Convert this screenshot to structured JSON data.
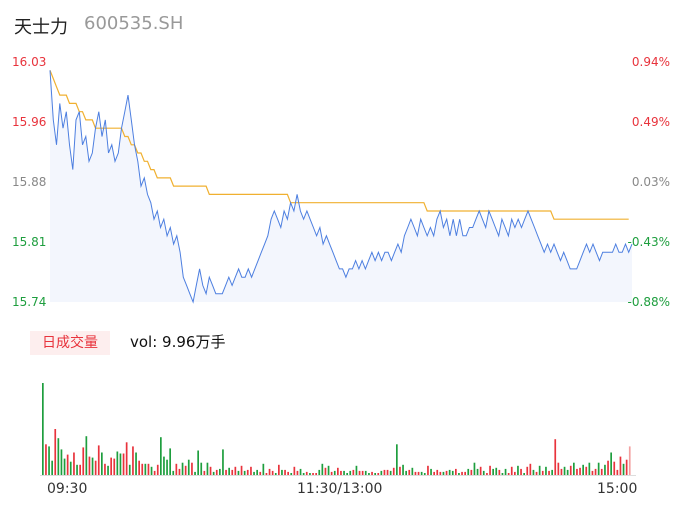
{
  "header": {
    "name": "天士力",
    "code": "600535.SH"
  },
  "price_axis": {
    "left_labels": [
      "16.03",
      "15.96",
      "15.88",
      "15.81",
      "15.74"
    ],
    "right_labels": [
      "0.94%",
      "0.49%",
      "0.03%",
      "-0.43%",
      "-0.88%"
    ]
  },
  "volume_panel": {
    "tab_label": "日成交量",
    "vol_text": "vol: 9.96万手"
  },
  "time_labels": [
    "09:30",
    "11:30/13:00",
    "15:00"
  ],
  "colors": {
    "up": "#e8333c",
    "down": "#1e9e3e",
    "neutral": "#888888",
    "price_line": "#4d7fe0",
    "avg_line": "#f0b030"
  },
  "chart_data": [
    {
      "type": "line",
      "ylim": [
        15.74,
        16.03
      ],
      "series": [
        {
          "values": [
            16.02,
            15.96,
            15.93,
            15.98,
            15.95,
            15.97,
            15.93,
            15.9,
            15.96,
            15.97,
            15.93,
            15.94,
            15.91,
            15.92,
            15.95,
            15.97,
            15.94,
            15.96,
            15.92,
            15.93,
            15.91,
            15.92,
            15.95,
            15.97,
            15.99,
            15.96,
            15.93,
            15.91,
            15.88,
            15.89,
            15.87,
            15.86,
            15.84,
            15.85,
            15.83,
            15.84,
            15.82,
            15.83,
            15.81,
            15.82,
            15.8,
            15.77,
            15.76,
            15.75,
            15.74,
            15.76,
            15.78,
            15.76,
            15.75,
            15.77,
            15.76,
            15.75,
            15.75,
            15.75,
            15.76,
            15.77,
            15.76,
            15.77,
            15.78,
            15.77,
            15.77,
            15.78,
            15.77,
            15.78,
            15.79,
            15.8,
            15.81,
            15.82,
            15.84,
            15.85,
            15.84,
            15.83,
            15.85,
            15.84,
            15.86,
            15.85,
            15.87,
            15.85,
            15.84,
            15.85,
            15.84,
            15.83,
            15.82,
            15.83,
            15.81,
            15.82,
            15.81,
            15.8,
            15.79,
            15.78,
            15.78,
            15.77,
            15.78,
            15.78,
            15.79,
            15.78,
            15.79,
            15.78,
            15.79,
            15.8,
            15.79,
            15.8,
            15.79,
            15.8,
            15.8,
            15.79,
            15.8,
            15.81,
            15.8,
            15.82,
            15.83,
            15.84,
            15.83,
            15.82,
            15.84,
            15.83,
            15.82,
            15.83,
            15.82,
            15.84,
            15.85,
            15.83,
            15.84,
            15.82,
            15.84,
            15.82,
            15.84,
            15.82,
            15.82,
            15.83,
            15.83,
            15.84,
            15.85,
            15.84,
            15.83,
            15.85,
            15.84,
            15.83,
            15.82,
            15.84,
            15.83,
            15.82,
            15.84,
            15.83,
            15.84,
            15.83,
            15.84,
            15.85,
            15.84,
            15.83,
            15.82,
            15.81,
            15.8,
            15.81,
            15.8,
            15.81,
            15.8,
            15.79,
            15.8,
            15.79,
            15.78,
            15.78,
            15.78,
            15.79,
            15.8,
            15.81,
            15.8,
            15.81,
            15.8,
            15.79,
            15.8,
            15.8,
            15.8,
            15.8,
            15.81,
            15.8,
            15.8,
            15.81,
            15.8,
            15.81
          ]
        },
        {
          "values": [
            16.02,
            16.01,
            16.0,
            15.99,
            15.99,
            15.99,
            15.98,
            15.98,
            15.98,
            15.97,
            15.97,
            15.96,
            15.96,
            15.96,
            15.95,
            15.95,
            15.95,
            15.95,
            15.95,
            15.95,
            15.95,
            15.95,
            15.95,
            15.94,
            15.94,
            15.93,
            15.93,
            15.92,
            15.92,
            15.91,
            15.91,
            15.9,
            15.9,
            15.89,
            15.89,
            15.89,
            15.89,
            15.89,
            15.88,
            15.88,
            15.88,
            15.88,
            15.88,
            15.88,
            15.88,
            15.88,
            15.88,
            15.88,
            15.88,
            15.87,
            15.87,
            15.87,
            15.87,
            15.87,
            15.87,
            15.87,
            15.87,
            15.87,
            15.87,
            15.87,
            15.87,
            15.87,
            15.87,
            15.87,
            15.87,
            15.87,
            15.87,
            15.87,
            15.87,
            15.87,
            15.87,
            15.87,
            15.87,
            15.87,
            15.86,
            15.86,
            15.86,
            15.86,
            15.86,
            15.86,
            15.86,
            15.86,
            15.86,
            15.86,
            15.86,
            15.86,
            15.86,
            15.86,
            15.86,
            15.86,
            15.86,
            15.86,
            15.86,
            15.86,
            15.86,
            15.86,
            15.86,
            15.86,
            15.86,
            15.86,
            15.86,
            15.86,
            15.86,
            15.86,
            15.86,
            15.86,
            15.86,
            15.86,
            15.86,
            15.86,
            15.86,
            15.86,
            15.86,
            15.86,
            15.86,
            15.86,
            15.85,
            15.85,
            15.85,
            15.85,
            15.85,
            15.85,
            15.85,
            15.85,
            15.85,
            15.85,
            15.85,
            15.85,
            15.85,
            15.85,
            15.85,
            15.85,
            15.85,
            15.85,
            15.85,
            15.85,
            15.85,
            15.85,
            15.85,
            15.85,
            15.85,
            15.85,
            15.85,
            15.85,
            15.85,
            15.85,
            15.85,
            15.85,
            15.85,
            15.85,
            15.85,
            15.85,
            15.85,
            15.85,
            15.85,
            15.84,
            15.84,
            15.84,
            15.84,
            15.84,
            15.84,
            15.84,
            15.84,
            15.84,
            15.84,
            15.84,
            15.84,
            15.84,
            15.84,
            15.84,
            15.84,
            15.84,
            15.84,
            15.84,
            15.84,
            15.84,
            15.84,
            15.84,
            15.84
          ]
        }
      ]
    },
    {
      "type": "bar",
      "values": [
        90,
        30,
        28,
        14,
        45,
        36,
        25,
        16,
        20,
        13,
        22,
        10,
        10,
        27,
        38,
        18,
        17,
        14,
        29,
        22,
        11,
        9,
        17,
        16,
        23,
        21,
        21,
        32,
        10,
        28,
        22,
        14,
        11,
        11,
        11,
        8,
        4,
        10,
        37,
        18,
        15,
        26,
        4,
        11,
        6,
        12,
        9,
        15,
        12,
        3,
        24,
        12,
        4,
        12,
        8,
        3,
        5,
        6,
        25,
        5,
        7,
        5,
        8,
        4,
        9,
        4,
        5,
        8,
        3,
        5,
        3,
        11,
        2,
        6,
        4,
        2,
        10,
        5,
        5,
        3,
        2,
        8,
        4,
        6,
        2,
        3,
        2,
        2,
        2,
        5,
        11,
        7,
        9,
        3,
        4,
        7,
        4,
        4,
        2,
        4,
        5,
        9,
        4,
        4,
        4,
        2,
        3,
        2,
        2,
        4,
        5,
        5,
        4,
        7,
        30,
        8,
        10,
        4,
        5,
        7,
        3,
        3,
        3,
        2,
        9,
        6,
        3,
        5,
        3,
        3,
        4,
        5,
        4,
        6,
        2,
        3,
        3,
        6,
        5,
        12,
        6,
        8,
        4,
        2,
        9,
        6,
        7,
        5,
        2,
        6,
        2,
        8,
        3,
        9,
        6,
        2,
        8,
        11,
        5,
        3,
        9,
        4,
        8,
        4,
        5,
        35,
        12,
        6,
        8,
        5,
        9,
        12,
        6,
        7,
        10,
        8,
        12,
        4,
        6,
        12,
        6,
        10,
        14,
        22,
        13,
        5,
        18,
        11,
        15,
        28
      ],
      "colors": [
        "down",
        "up",
        "down",
        "down",
        "up",
        "down",
        "down",
        "down",
        "up",
        "down",
        "up",
        "down",
        "up",
        "up",
        "down",
        "up",
        "down",
        "up",
        "up",
        "down",
        "up",
        "down",
        "up",
        "up",
        "down",
        "down",
        "up",
        "up",
        "down",
        "up",
        "down",
        "up",
        "up",
        "down",
        "up",
        "down",
        "up",
        "up",
        "down",
        "down",
        "down",
        "down",
        "down",
        "up",
        "up",
        "down",
        "up",
        "down",
        "up",
        "down",
        "down",
        "down",
        "up",
        "down",
        "up",
        "down",
        "up",
        "down",
        "down",
        "up",
        "down",
        "up",
        "up",
        "down",
        "up",
        "down",
        "up",
        "up",
        "down",
        "down",
        "up",
        "down",
        "up",
        "up",
        "up",
        "down",
        "up",
        "down",
        "up",
        "up",
        "down",
        "up",
        "up",
        "down",
        "down",
        "up",
        "down",
        "up",
        "up",
        "down",
        "down",
        "up",
        "down",
        "up",
        "down",
        "up",
        "up",
        "down",
        "down",
        "down",
        "up",
        "down",
        "up",
        "up",
        "down",
        "down",
        "up",
        "down",
        "up",
        "down",
        "up",
        "up",
        "down",
        "up",
        "down",
        "up",
        "down",
        "down",
        "up",
        "down",
        "up",
        "up",
        "down",
        "down",
        "up",
        "down",
        "up",
        "up",
        "up",
        "down",
        "up",
        "down",
        "down",
        "up",
        "down",
        "up",
        "up",
        "down",
        "up",
        "down",
        "down",
        "up",
        "down",
        "up",
        "up",
        "down",
        "down",
        "up",
        "down",
        "down",
        "up",
        "up",
        "up",
        "down",
        "up",
        "down",
        "up",
        "up",
        "down",
        "up",
        "down",
        "up",
        "down",
        "up",
        "down",
        "up",
        "up",
        "up",
        "down",
        "down",
        "up",
        "down",
        "up",
        "up",
        "down",
        "up",
        "down",
        "up",
        "up",
        "down",
        "up",
        "down",
        "up",
        "down",
        "up",
        "up",
        "up",
        "down",
        "up",
        "neutral"
      ]
    }
  ]
}
